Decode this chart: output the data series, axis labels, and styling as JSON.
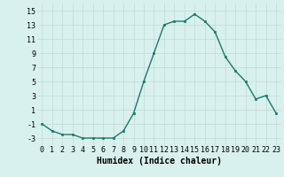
{
  "x": [
    0,
    1,
    2,
    3,
    4,
    5,
    6,
    7,
    8,
    9,
    10,
    11,
    12,
    13,
    14,
    15,
    16,
    17,
    18,
    19,
    20,
    21,
    22,
    23
  ],
  "y": [
    -1,
    -2,
    -2.5,
    -2.5,
    -3,
    -3,
    -3,
    -3,
    -2,
    0.5,
    5,
    9,
    13,
    13.5,
    13.5,
    14.5,
    13.5,
    12,
    8.5,
    6.5,
    5,
    2.5,
    3,
    0.5
  ],
  "line_color": "#1a7a6e",
  "marker_color": "#1a7a6e",
  "bg_color": "#d8f0ee",
  "grid_color": "#c0dbd8",
  "xlabel": "Humidex (Indice chaleur)",
  "xlim": [
    -0.5,
    23.5
  ],
  "ylim": [
    -4,
    16
  ],
  "yticks": [
    -3,
    -1,
    1,
    3,
    5,
    7,
    9,
    11,
    13,
    15
  ],
  "xticks": [
    0,
    1,
    2,
    3,
    4,
    5,
    6,
    7,
    8,
    9,
    10,
    11,
    12,
    13,
    14,
    15,
    16,
    17,
    18,
    19,
    20,
    21,
    22,
    23
  ],
  "xtick_labels": [
    "0",
    "1",
    "2",
    "3",
    "4",
    "5",
    "6",
    "7",
    "8",
    "9",
    "10",
    "11",
    "12",
    "13",
    "14",
    "15",
    "16",
    "17",
    "18",
    "19",
    "20",
    "21",
    "22",
    "23"
  ],
  "font_size": 6,
  "xlabel_fontsize": 7
}
